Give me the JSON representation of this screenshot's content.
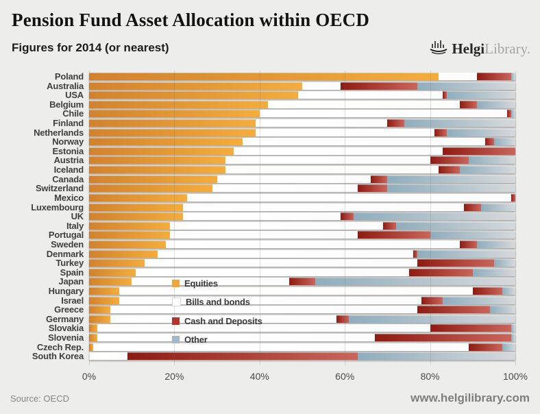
{
  "header": {
    "title": "Pension Fund Asset Allocation within OECD",
    "subtitle": "Figures for 2014 (or nearest)",
    "logo": {
      "brand_bold": "Helgi",
      "brand_light": "Library."
    }
  },
  "footer": {
    "source": "Source: OECD",
    "website": "www.helgilibrary.com"
  },
  "chart_data": {
    "type": "bar",
    "orientation": "horizontal",
    "stacked": true,
    "title": "Pension Fund Asset Allocation within OECD",
    "subtitle": "Figures for 2014 (or nearest)",
    "xlim": [
      0,
      100
    ],
    "x_ticks": [
      "0%",
      "20%",
      "40%",
      "60%",
      "80%",
      "100%"
    ],
    "grid": true,
    "legend_position": "inside-left",
    "categories": [
      "Poland",
      "Australia",
      "USA",
      "Belgium",
      "Chile",
      "Finland",
      "Netherlands",
      "Norway",
      "Estonia",
      "Austria",
      "Iceland",
      "Canada",
      "Switzerland",
      "Mexico",
      "Luxembourg",
      "UK",
      "Italy",
      "Portugal",
      "Sweden",
      "Denmark",
      "Turkey",
      "Spain",
      "Japan",
      "Hungary",
      "Israel",
      "Greece",
      "Germany",
      "Slovakia",
      "Slovenia",
      "Czech Rep.",
      "South Korea"
    ],
    "series": [
      {
        "name": "Equities",
        "swatch": "#EFA63A",
        "color_start": "#D2822D",
        "color_end": "#F4AD3C",
        "values": [
          82,
          50,
          49,
          42,
          40,
          39,
          39,
          36,
          34,
          32,
          32,
          30,
          29,
          23,
          22,
          22,
          19,
          19,
          18,
          16,
          13,
          11,
          10,
          7,
          7,
          5,
          5,
          2,
          2,
          1,
          0
        ]
      },
      {
        "name": "Bills and bonds",
        "swatch": "#FFFFFF",
        "color_start": "#FFFFFF",
        "color_end": "#FCFCFC",
        "values": [
          9,
          9,
          34,
          45,
          58,
          31,
          42,
          57,
          49,
          48,
          50,
          36,
          34,
          76,
          66,
          37,
          50,
          44,
          69,
          60,
          64,
          64,
          37,
          83,
          71,
          72,
          53,
          78,
          65,
          88,
          9
        ]
      },
      {
        "name": "Cash and Deposits",
        "swatch": "#B5352C",
        "color_start": "#8F1B12",
        "color_end": "#C9655B",
        "values": [
          8,
          18,
          1,
          4,
          1,
          4,
          3,
          2,
          17,
          9,
          5,
          4,
          7,
          1,
          4,
          3,
          3,
          17,
          4,
          1,
          18,
          15,
          6,
          7,
          5,
          17,
          3,
          19,
          32,
          8,
          54
        ]
      },
      {
        "name": "Other",
        "swatch": "#A3BAC6",
        "color_start": "#8FADBD",
        "color_end": "#D6D9DB",
        "values": [
          1,
          23,
          16,
          9,
          1,
          26,
          16,
          5,
          0,
          11,
          13,
          30,
          30,
          0,
          8,
          38,
          28,
          20,
          9,
          23,
          5,
          10,
          47,
          3,
          17,
          6,
          39,
          1,
          1,
          3,
          37
        ]
      }
    ]
  }
}
